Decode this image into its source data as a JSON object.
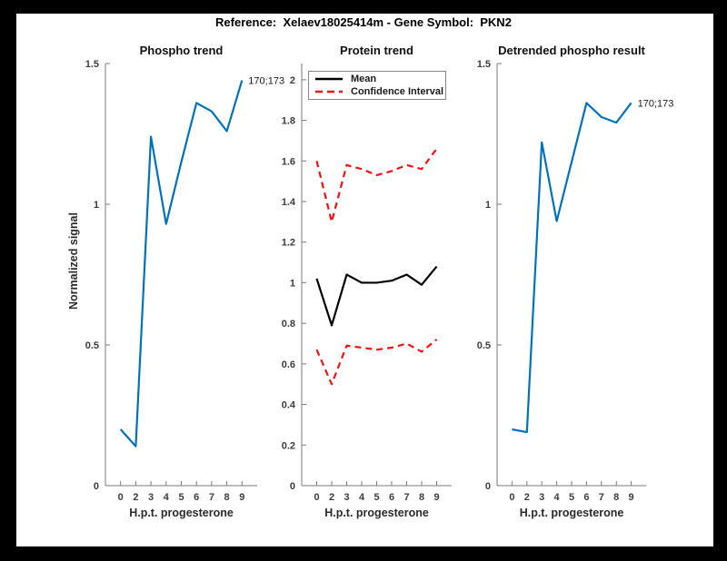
{
  "page": {
    "title": "Reference:  Xelaev18025414m - Gene Symbol:  PKN2"
  },
  "colors": {
    "background": "#000000",
    "figure": "#ffffff",
    "axis": "#7b7b7b",
    "blue": "#0072BD",
    "red": "#f21111",
    "black": "#000000"
  },
  "chart_data": [
    {
      "type": "line",
      "title": "Phospho trend",
      "xlabel": "H.p.t. progesterone",
      "ylabel": "Normalized signal",
      "categories": [
        "0",
        "2",
        "3",
        "4",
        "5",
        "6",
        "7",
        "8",
        "9"
      ],
      "ylim": [
        0,
        1.5
      ],
      "yticks": [
        0,
        0.5,
        1,
        1.5
      ],
      "ytick_labels": [
        "0",
        "0.5",
        "1",
        "1.5"
      ],
      "grid": false,
      "legend": null,
      "series": [
        {
          "name": "",
          "color": "#0072BD",
          "dash": "solid",
          "values": [
            0.2,
            0.14,
            1.24,
            0.93,
            1.15,
            1.36,
            1.33,
            1.26,
            1.44
          ]
        }
      ],
      "annotation": {
        "text": "170;173",
        "series": 0,
        "point": 8
      }
    },
    {
      "type": "line",
      "title": "Protein trend",
      "xlabel": "H.p.t. progesterone",
      "ylabel": "",
      "categories": [
        "0",
        "2",
        "3",
        "4",
        "5",
        "6",
        "7",
        "8",
        "9"
      ],
      "ylim": [
        0,
        2.08
      ],
      "yticks": [
        0,
        0.2,
        0.4,
        0.6,
        0.8,
        1,
        1.2,
        1.4,
        1.6,
        1.8,
        2
      ],
      "ytick_labels": [
        "0",
        "0.2",
        "0.4",
        "0.6",
        "0.8",
        "1",
        "1.2",
        "1.4",
        "1.6",
        "1.8",
        "2"
      ],
      "grid": false,
      "legend": {
        "position": "top-left",
        "entries": [
          "Mean",
          "Confidence Interval"
        ]
      },
      "series": [
        {
          "name": "Mean",
          "color": "#000000",
          "dash": "solid",
          "values": [
            1.02,
            0.79,
            1.04,
            1.0,
            1.0,
            1.01,
            1.04,
            0.99,
            1.08
          ]
        },
        {
          "name": "Confidence Interval",
          "color": "#f21111",
          "dash": "dashed",
          "values": [
            1.6,
            1.3,
            1.58,
            1.56,
            1.53,
            1.55,
            1.58,
            1.56,
            1.66
          ]
        },
        {
          "name": "Confidence Interval",
          "color": "#f21111",
          "dash": "dashed",
          "values": [
            0.67,
            0.5,
            0.69,
            0.68,
            0.67,
            0.68,
            0.7,
            0.66,
            0.72
          ]
        }
      ],
      "annotation": null
    },
    {
      "type": "line",
      "title": "Detrended phospho result",
      "xlabel": "H.p.t. progesterone",
      "ylabel": "",
      "categories": [
        "0",
        "2",
        "3",
        "4",
        "5",
        "6",
        "7",
        "8",
        "9"
      ],
      "ylim": [
        0,
        1.5
      ],
      "yticks": [
        0,
        0.5,
        1,
        1.5
      ],
      "ytick_labels": [
        "0",
        "0.5",
        "1",
        "1.5"
      ],
      "grid": false,
      "legend": null,
      "series": [
        {
          "name": "",
          "color": "#0072BD",
          "dash": "solid",
          "values": [
            0.2,
            0.19,
            1.22,
            0.94,
            1.15,
            1.36,
            1.31,
            1.29,
            1.36
          ]
        }
      ],
      "annotation": {
        "text": "170;173",
        "series": 0,
        "point": 8
      }
    }
  ]
}
